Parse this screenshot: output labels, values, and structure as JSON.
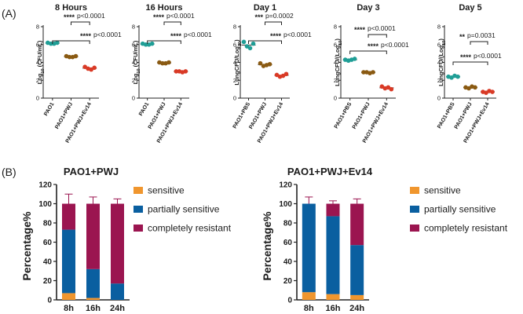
{
  "panel_labels": [
    "(A)",
    "(B)"
  ],
  "colors": {
    "PAO1": "#1f9e96",
    "PAO1+PWJ": "#8a5a12",
    "PAO1+PWJ+Ev14": "#d93a26",
    "PAO1+PBS": "#1f9e96",
    "sensitive": "#f0962e",
    "partially sensitive": "#0a5fa0",
    "completely resistant": "#9b1550"
  },
  "chart_data": [
    {
      "id": "8h",
      "type": "scatter",
      "title": "8 Hours",
      "ylabel_main": "Log",
      "ylabel_sub": "10",
      "ylabel_tail": " (CFU/mL)",
      "ylim": [
        0,
        8
      ],
      "yticks": [
        "0",
        "2",
        "4",
        "6",
        "8"
      ],
      "categories": [
        "PAO1",
        "PAO1+PWJ",
        "PAO1+PWJ+Ev14"
      ],
      "points": [
        [
          6.2,
          6.1,
          6.1,
          6.2
        ],
        [
          4.7,
          4.6,
          4.6,
          4.7
        ],
        [
          3.5,
          3.3,
          3.2,
          3.4
        ]
      ],
      "means": [
        6.15,
        4.65,
        3.35
      ],
      "annotations": [
        {
          "from": 0,
          "to": 2,
          "stars": "****",
          "p": "p<0.0001",
          "level": 1
        },
        {
          "from": 1,
          "to": 2,
          "stars": "****",
          "p": "p<0.0001",
          "level": 0
        }
      ]
    },
    {
      "id": "16h",
      "type": "scatter",
      "title": "16 Hours",
      "ylabel_main": "Log",
      "ylabel_sub": "10",
      "ylabel_tail": " (CFU/mL)",
      "ylim": [
        0,
        8
      ],
      "yticks": [
        "0",
        "2",
        "4",
        "6",
        "8"
      ],
      "categories": [
        "PAO1",
        "PAO1+PWJ",
        "PAO1+PWJ+Ev14"
      ],
      "points": [
        [
          6.1,
          6.0,
          6.0,
          6.1
        ],
        [
          4.0,
          3.9,
          3.9,
          4.0
        ],
        [
          3.0,
          3.0,
          2.9,
          3.0
        ]
      ],
      "means": [
        6.05,
        3.95,
        2.98
      ],
      "annotations": [
        {
          "from": 0,
          "to": 2,
          "stars": "****",
          "p": "p<0.0001",
          "level": 1
        },
        {
          "from": 1,
          "to": 2,
          "stars": "****",
          "p": "p<0.0001",
          "level": 0
        }
      ]
    },
    {
      "id": "d1",
      "type": "scatter",
      "title": "Day 1",
      "ylabel_main": "LungCFU/Log",
      "ylabel_sub": "10",
      "ylabel_tail": ")",
      "ylabel_prefix": "",
      "ylim": [
        0,
        8
      ],
      "yticks": [
        "0",
        "2",
        "4",
        "6",
        "8"
      ],
      "categories": [
        "PAO1+PBS",
        "PAO1+PWJ",
        "PAO1+PWJ+Ev14"
      ],
      "points": [
        [
          6.3,
          5.8,
          5.6,
          6.1
        ],
        [
          3.9,
          3.6,
          3.7,
          3.8
        ],
        [
          2.6,
          2.4,
          2.5,
          2.7
        ]
      ],
      "means": [
        5.95,
        3.75,
        2.55
      ],
      "annotations": [
        {
          "from": 0,
          "to": 2,
          "stars": "****",
          "p": "p<0.0001",
          "level": 1
        },
        {
          "from": 1,
          "to": 2,
          "stars": "***",
          "p": "p=0.0002",
          "level": 0
        }
      ]
    },
    {
      "id": "d3",
      "type": "scatter",
      "title": "Day 3",
      "ylabel_main": "LungCFU/(Log",
      "ylabel_sub": "10",
      "ylabel_tail": ")",
      "ylim": [
        0,
        8
      ],
      "yticks": [
        "0",
        "2",
        "4",
        "6",
        "8"
      ],
      "categories": [
        "PAO1+PBS",
        "PAO1+PWJ",
        "PAO1+PWJ+Ev14"
      ],
      "points": [
        [
          4.3,
          4.2,
          4.3,
          4.4
        ],
        [
          2.9,
          2.9,
          2.8,
          2.9
        ],
        [
          1.3,
          1.1,
          1.2,
          1.0
        ]
      ],
      "means": [
        4.3,
        2.88,
        1.15
      ],
      "annotations": [
        {
          "from": 0,
          "to": 2,
          "stars": "****",
          "p": "p<0.0001",
          "level": 1
        },
        {
          "from": 1,
          "to": 2,
          "stars": "****",
          "p": "p<0.0001",
          "level": 0
        }
      ]
    },
    {
      "id": "d5",
      "type": "scatter",
      "title": "Day 5",
      "ylabel_main": "LungCFU/(Log",
      "ylabel_sub": "10",
      "ylabel_tail": ")",
      "ylim": [
        0,
        8
      ],
      "yticks": [
        "0",
        "2",
        "4",
        "6",
        "8"
      ],
      "categories": [
        "PAO1+PBS",
        "PAO1+PWJ",
        "PAO1+PWJ+Ev14"
      ],
      "points": [
        [
          2.4,
          2.3,
          2.5,
          2.4
        ],
        [
          1.2,
          1.1,
          1.3,
          1.2
        ],
        [
          0.7,
          0.6,
          0.8,
          0.7
        ]
      ],
      "means": [
        2.4,
        1.2,
        0.7
      ],
      "annotations": [
        {
          "from": 0,
          "to": 2,
          "stars": "****",
          "p": "p<0.0001",
          "level": 1
        },
        {
          "from": 1,
          "to": 2,
          "stars": "**",
          "p": "p=0.0031",
          "level": 0
        }
      ]
    },
    {
      "id": "pwj",
      "type": "bar",
      "stacked": true,
      "title": "PAO1+PWJ",
      "ylabel": "Percentage%",
      "ylim": [
        0,
        120
      ],
      "yticks": [
        "0",
        "20",
        "40",
        "60",
        "80",
        "100",
        "120"
      ],
      "categories": [
        "8h",
        "16h",
        "24h"
      ],
      "series": [
        {
          "name": "sensitive",
          "values": [
            7,
            2,
            0
          ],
          "err": [
            6,
            2,
            0
          ]
        },
        {
          "name": "partially sensitive",
          "values": [
            66,
            30,
            17
          ],
          "err": [
            0,
            0,
            0
          ]
        },
        {
          "name": "completely resistant",
          "values": [
            27,
            68,
            83
          ],
          "err": [
            10,
            7,
            5
          ]
        }
      ],
      "legend": [
        "sensitive",
        "partially sensitive",
        "completely resistant"
      ]
    },
    {
      "id": "ev14",
      "type": "bar",
      "stacked": true,
      "title": "PAO1+PWJ+Ev14",
      "ylabel": "Percentage%",
      "ylim": [
        0,
        120
      ],
      "yticks": [
        "0",
        "20",
        "40",
        "60",
        "80",
        "100",
        "120"
      ],
      "categories": [
        "8h",
        "16h",
        "24h"
      ],
      "series": [
        {
          "name": "sensitive",
          "values": [
            8,
            6,
            5
          ],
          "err": [
            6,
            4,
            3
          ]
        },
        {
          "name": "partially sensitive",
          "values": [
            92,
            81,
            52
          ],
          "err": [
            0,
            0,
            0
          ]
        },
        {
          "name": "completely resistant",
          "values": [
            0,
            13,
            43
          ],
          "err": [
            7,
            3,
            5
          ]
        }
      ],
      "legend": [
        "sensitive",
        "partially sensitive",
        "completely resistant"
      ]
    }
  ]
}
